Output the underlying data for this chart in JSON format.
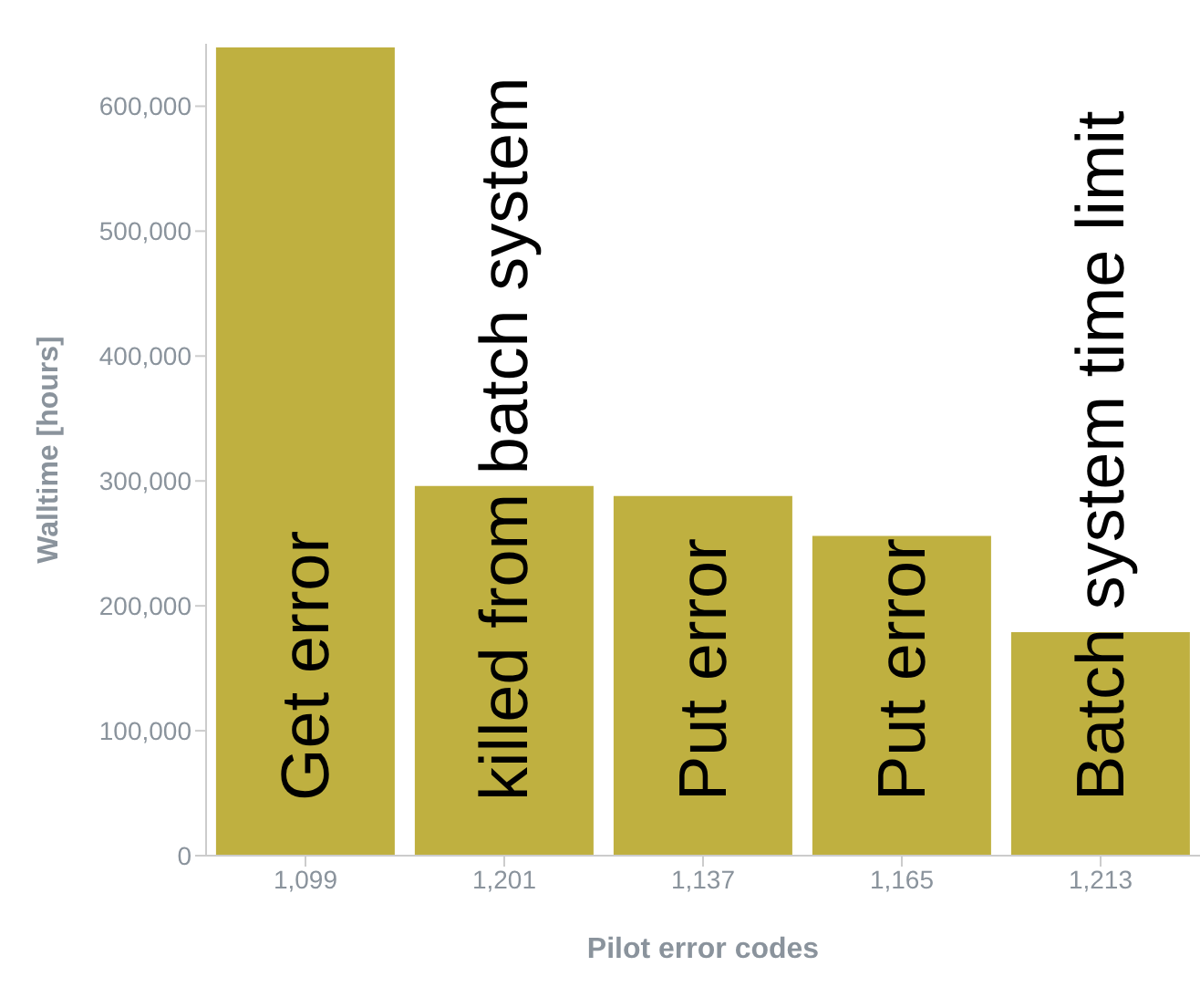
{
  "chart_data": {
    "type": "bar",
    "xlabel": "Pilot error codes",
    "ylabel": "Walltime [hours]",
    "categories": [
      "1,099",
      "1,201",
      "1,137",
      "1,165",
      "1,213"
    ],
    "values": [
      647000,
      296000,
      288000,
      256000,
      179000
    ],
    "color": "#bfb040",
    "ylim": [
      0,
      650000
    ],
    "yticks": [
      {
        "value": 0,
        "label": "0"
      },
      {
        "value": 100000,
        "label": "100,000"
      },
      {
        "value": 200000,
        "label": "200,000"
      },
      {
        "value": 300000,
        "label": "300,000"
      },
      {
        "value": 400000,
        "label": "400,000"
      },
      {
        "value": 500000,
        "label": "500,000"
      },
      {
        "value": 600000,
        "label": "600,000"
      }
    ],
    "annotations": [
      "Get error",
      "killed from batch system",
      "Put error",
      "Put error",
      "Batch system time limit"
    ],
    "grid": false,
    "legend": false
  }
}
